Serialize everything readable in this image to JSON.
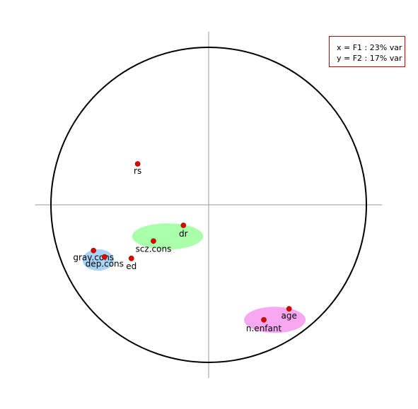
{
  "chart_data": {
    "type": "scatter",
    "title": "",
    "xlabel": "",
    "ylabel": "",
    "xlim": [
      -1.1,
      1.1
    ],
    "ylim": [
      -1.1,
      1.1
    ],
    "correlation_circle": true,
    "grid": false,
    "legend": {
      "position": "top-right",
      "lines": [
        "x = F1 : 23% var",
        "y = F2 : 17% var"
      ],
      "border_color": "#cc0000"
    },
    "points": [
      {
        "label": "rs",
        "x": -0.45,
        "y": 0.26
      },
      {
        "label": "dr",
        "x": -0.16,
        "y": -0.13
      },
      {
        "label": "scz.cons",
        "x": -0.35,
        "y": -0.23
      },
      {
        "label": "grav.cons",
        "x": -0.73,
        "y": -0.29
      },
      {
        "label": "dep.cons",
        "x": -0.66,
        "y": -0.33
      },
      {
        "label": "ed",
        "x": -0.49,
        "y": -0.34
      },
      {
        "label": "age",
        "x": 0.51,
        "y": -0.66
      },
      {
        "label": "n.enfant",
        "x": 0.35,
        "y": -0.73
      }
    ],
    "clusters": [
      {
        "members": [
          "dr",
          "scz.cons"
        ],
        "color": "#aaffaa",
        "center": [
          -0.26,
          -0.2
        ],
        "radius": [
          0.45,
          0.13
        ]
      },
      {
        "members": [
          "grav.cons",
          "dep.cons"
        ],
        "color": "#aad4f7",
        "center": [
          -0.7,
          -0.35
        ],
        "radius": [
          0.2,
          0.1
        ]
      },
      {
        "members": [
          "age",
          "n.enfant"
        ],
        "color": "#f7a8f0",
        "center": [
          0.42,
          -0.73
        ],
        "radius": [
          0.39,
          0.13
        ]
      }
    ],
    "point_color": "#dd0000"
  }
}
